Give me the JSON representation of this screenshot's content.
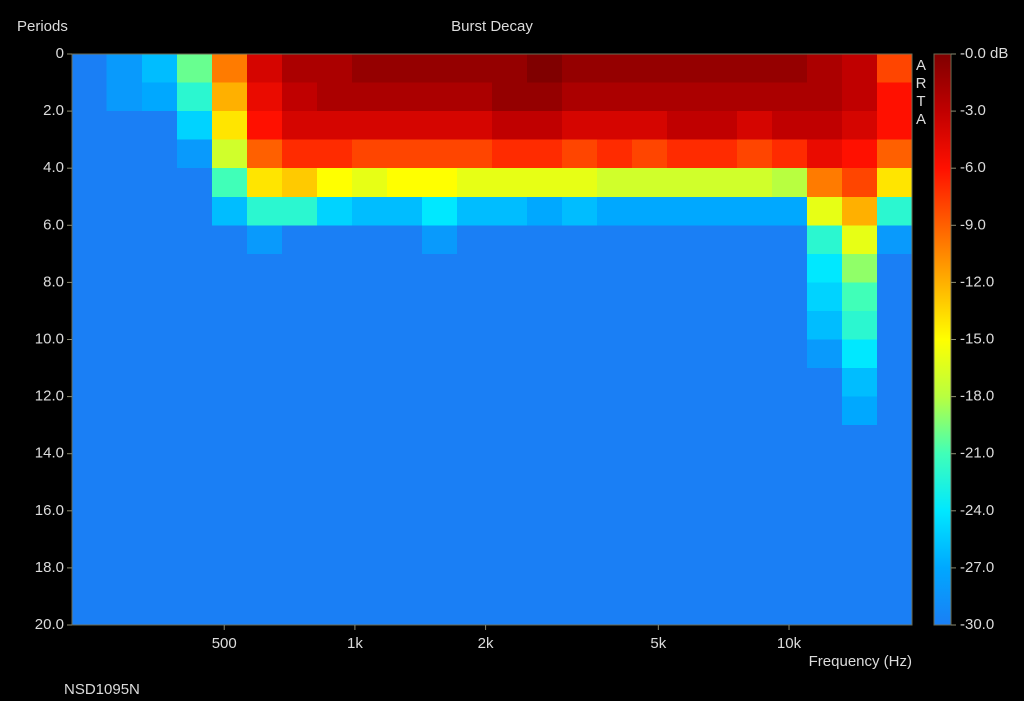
{
  "chart_data": {
    "type": "heatmap",
    "title": "Burst Decay",
    "y_label": "Periods",
    "x_label": "Frequency (Hz)",
    "annotation": "NSD1095N",
    "watermark": "ARTA",
    "x_scale": "log",
    "xlim": [
      223,
      19200
    ],
    "xticks": [
      {
        "value": 500,
        "label": "500"
      },
      {
        "value": 1000,
        "label": "1k"
      },
      {
        "value": 2000,
        "label": "2k"
      },
      {
        "value": 5000,
        "label": "5k"
      },
      {
        "value": 10000,
        "label": "10k"
      }
    ],
    "ylim": [
      0,
      20
    ],
    "yticks": [
      0,
      {
        "value": 2,
        "label": "2.0"
      },
      {
        "value": 4,
        "label": "4.0"
      },
      {
        "value": 6,
        "label": "6.0"
      },
      {
        "value": 8,
        "label": "8.0"
      },
      {
        "value": 10,
        "label": "10.0"
      },
      {
        "value": 12,
        "label": "12.0"
      },
      {
        "value": 14,
        "label": "14.0"
      },
      {
        "value": 16,
        "label": "16.0"
      },
      {
        "value": 18,
        "label": "18.0"
      },
      {
        "value": 20,
        "label": "20.0"
      }
    ],
    "zlim": [
      -30,
      0
    ],
    "zticks": [
      {
        "value": 0,
        "label": "-0.0 dB"
      },
      {
        "value": -3,
        "label": "-3.0"
      },
      {
        "value": -6,
        "label": "-6.0"
      },
      {
        "value": -9,
        "label": "-9.0"
      },
      {
        "value": -12,
        "label": "-12.0"
      },
      {
        "value": -15,
        "label": "-15.0"
      },
      {
        "value": -18,
        "label": "-18.0"
      },
      {
        "value": -21,
        "label": "-21.0"
      },
      {
        "value": -24,
        "label": "-24.0"
      },
      {
        "value": -27,
        "label": "-27.0"
      },
      {
        "value": -30,
        "label": "-30.0"
      }
    ],
    "colormap": [
      "#1a7ff5",
      "#00a8ff",
      "#00e8ff",
      "#40ffb8",
      "#b8ff40",
      "#ffff00",
      "#ffb000",
      "#ff6000",
      "#ff1000",
      "#c00000",
      "#800000"
    ],
    "x": [
      223,
      268,
      323,
      389,
      469,
      564,
      679,
      818,
      985,
      1186,
      1428,
      1719,
      2070,
      2492,
      3001,
      3613,
      4350,
      5237,
      6306,
      7592,
      9141,
      11006,
      13251,
      15954,
      19200
    ],
    "y": [
      0,
      1,
      2,
      3,
      4,
      5,
      6,
      7,
      8,
      9,
      10,
      11,
      12,
      13,
      14,
      20
    ],
    "z": [
      [
        -30,
        -30,
        -30,
        -30,
        -30,
        -30,
        -30,
        -30,
        -30,
        -30,
        -30,
        -30,
        -30,
        -30,
        -30
      ],
      [
        -28,
        -28,
        -30,
        -30,
        -30,
        -30,
        -30,
        -30,
        -30,
        -30,
        -30,
        -30,
        -30,
        -30,
        -30
      ],
      [
        -26,
        -27,
        -30,
        -30,
        -30,
        -30,
        -30,
        -30,
        -30,
        -30,
        -30,
        -30,
        -30,
        -30,
        -30
      ],
      [
        -20,
        -22,
        -25,
        -28,
        -30,
        -30,
        -30,
        -30,
        -30,
        -30,
        -30,
        -30,
        -30,
        -30,
        -30
      ],
      [
        -10,
        -12,
        -14,
        -17,
        -21,
        -26,
        -30,
        -30,
        -30,
        -30,
        -30,
        -30,
        -30,
        -30,
        -30
      ],
      [
        -4,
        -5,
        -6,
        -9,
        -14,
        -22,
        -28,
        -30,
        -30,
        -30,
        -30,
        -30,
        -30,
        -30,
        -30
      ],
      [
        -2,
        -3,
        -4,
        -7,
        -13,
        -22,
        -30,
        -30,
        -30,
        -30,
        -30,
        -30,
        -30,
        -30,
        -30
      ],
      [
        -2,
        -2,
        -4,
        -7,
        -15,
        -25,
        -30,
        -30,
        -30,
        -30,
        -30,
        -30,
        -30,
        -30,
        -30
      ],
      [
        -1,
        -2,
        -4,
        -8,
        -16,
        -26,
        -30,
        -30,
        -30,
        -30,
        -30,
        -30,
        -30,
        -30,
        -30
      ],
      [
        -1,
        -2,
        -4,
        -8,
        -15,
        -26,
        -30,
        -30,
        -30,
        -30,
        -30,
        -30,
        -30,
        -30,
        -30
      ],
      [
        -1,
        -2,
        -4,
        -8,
        -15,
        -24,
        -28,
        -30,
        -30,
        -30,
        -30,
        -30,
        -30,
        -30,
        -30
      ],
      [
        -1,
        -2,
        -4,
        -8,
        -16,
        -26,
        -30,
        -30,
        -30,
        -30,
        -30,
        -30,
        -30,
        -30,
        -30
      ],
      [
        -1,
        -1,
        -3,
        -7,
        -16,
        -26,
        -30,
        -30,
        -30,
        -30,
        -30,
        -30,
        -30,
        -30,
        -30
      ],
      [
        0,
        -1,
        -3,
        -7,
        -16,
        -27,
        -30,
        -30,
        -30,
        -30,
        -30,
        -30,
        -30,
        -30,
        -30
      ],
      [
        -1,
        -2,
        -4,
        -8,
        -16,
        -26,
        -30,
        -30,
        -30,
        -30,
        -30,
        -30,
        -30,
        -30,
        -30
      ],
      [
        -1,
        -2,
        -4,
        -7,
        -17,
        -27,
        -30,
        -30,
        -30,
        -30,
        -30,
        -30,
        -30,
        -30,
        -30
      ],
      [
        -1,
        -2,
        -4,
        -8,
        -17,
        -27,
        -30,
        -30,
        -30,
        -30,
        -30,
        -30,
        -30,
        -30,
        -30
      ],
      [
        -1,
        -2,
        -3,
        -7,
        -17,
        -27,
        -30,
        -30,
        -30,
        -30,
        -30,
        -30,
        -30,
        -30,
        -30
      ],
      [
        -1,
        -2,
        -3,
        -7,
        -17,
        -27,
        -30,
        -30,
        -30,
        -30,
        -30,
        -30,
        -30,
        -30,
        -30
      ],
      [
        -1,
        -2,
        -4,
        -8,
        -17,
        -27,
        -30,
        -30,
        -30,
        -30,
        -30,
        -30,
        -30,
        -30,
        -30
      ],
      [
        -1,
        -2,
        -3,
        -7,
        -18,
        -27,
        -30,
        -30,
        -30,
        -30,
        -30,
        -30,
        -30,
        -30,
        -30
      ],
      [
        -2,
        -2,
        -3,
        -5,
        -10,
        -16,
        -22,
        -24,
        -25,
        -26,
        -28,
        -30,
        -30,
        -30,
        -30
      ],
      [
        -3,
        -3,
        -4,
        -6,
        -8,
        -12,
        -16,
        -19,
        -21,
        -22,
        -24,
        -26,
        -27,
        -30,
        -30
      ],
      [
        -8,
        -6,
        -6,
        -9,
        -14,
        -22,
        -28,
        -30,
        -30,
        -30,
        -30,
        -30,
        -30,
        -30,
        -30
      ]
    ]
  }
}
